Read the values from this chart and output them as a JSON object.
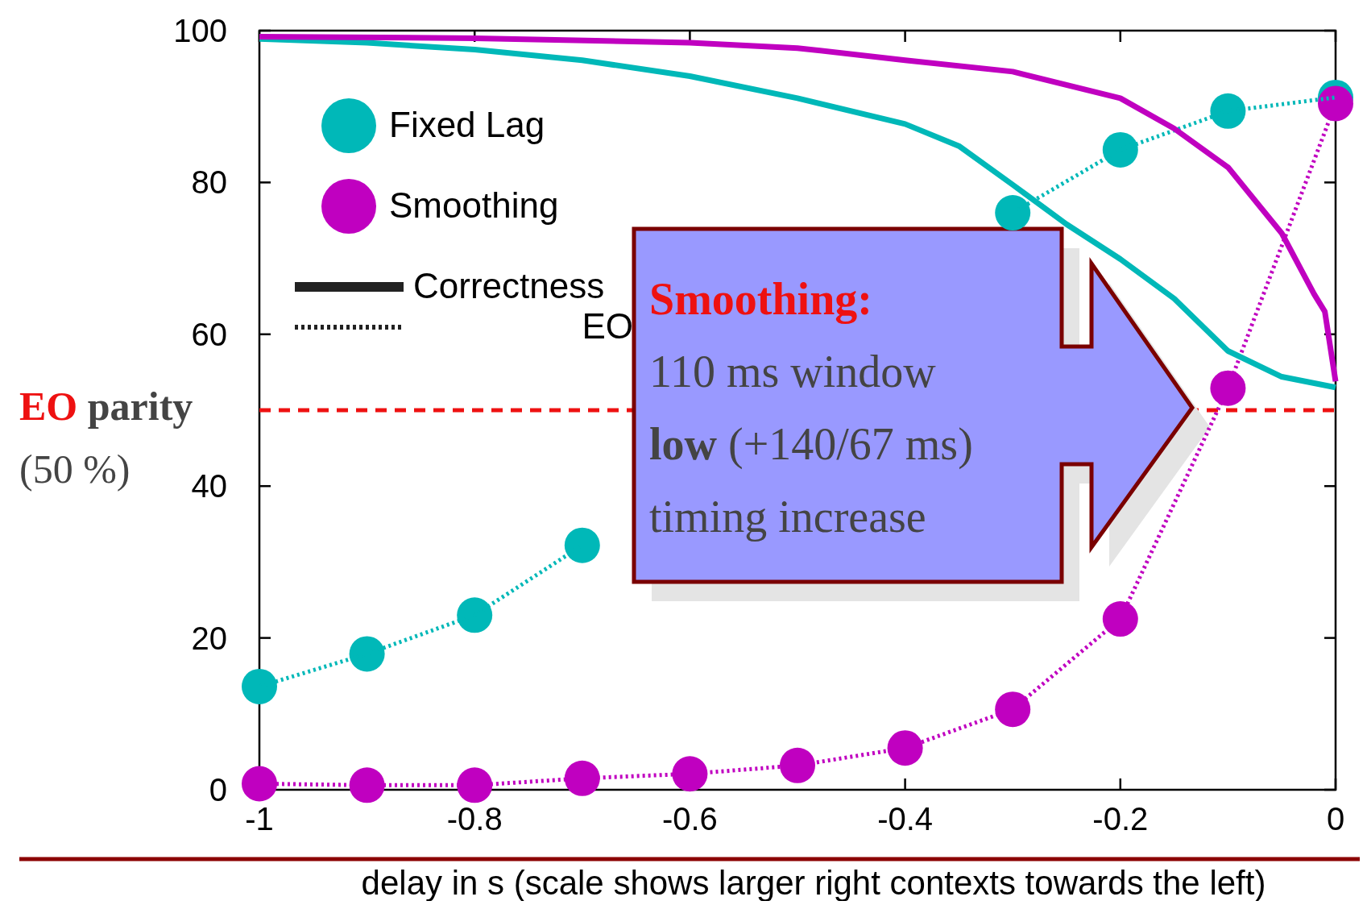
{
  "chart_data": {
    "type": "line",
    "xlabel": "delay in s (scale shows larger right contexts towards the left)",
    "xlim": [
      -1,
      0
    ],
    "xticks": [
      -1,
      -0.8,
      -0.6,
      -0.4,
      -0.2,
      0
    ],
    "ylim": [
      0,
      100
    ],
    "yticks": [
      0,
      20,
      40,
      60,
      80,
      100
    ],
    "grid": false,
    "legend": "top left",
    "series": [
      {
        "name": "Fixed Lag",
        "color": "#00b8b8",
        "marker": "circle",
        "line_style": "dotted",
        "x": [
          -1,
          -0.9,
          -0.8,
          -0.7,
          -0.6,
          -0.5,
          -0.4,
          -0.3,
          -0.2,
          -0.1,
          0
        ],
        "values": [
          13.6,
          17.9,
          23,
          32.2,
          null,
          null,
          null,
          76,
          84.3,
          89.4,
          91.2
        ]
      },
      {
        "name": "Smoothing",
        "color": "#c000c0",
        "marker": "circle",
        "line_style": "dotted",
        "x": [
          -1,
          -0.9,
          -0.8,
          -0.7,
          -0.6,
          -0.5,
          -0.4,
          -0.3,
          -0.2,
          -0.1,
          0
        ],
        "values": [
          0.8,
          0.6,
          0.6,
          1.5,
          2.1,
          3.2,
          5.5,
          10.6,
          22.5,
          52.9,
          90.4
        ]
      },
      {
        "color": "#00b8b8",
        "marker": "none",
        "line_style": "solid",
        "x": [
          -1,
          -0.9,
          -0.8,
          -0.7,
          -0.6,
          -0.5,
          -0.4,
          -0.35,
          -0.3,
          -0.25,
          -0.2,
          -0.15,
          -0.1,
          -0.05,
          0
        ],
        "values": [
          98.9,
          98.4,
          97.5,
          96.1,
          94,
          91.1,
          87.7,
          84.8,
          79.7,
          74.5,
          69.9,
          64.7,
          57.8,
          54.4,
          53
        ]
      },
      {
        "color": "#c000c0",
        "marker": "none",
        "line_style": "solid",
        "x": [
          -1,
          -0.8,
          -0.6,
          -0.5,
          -0.4,
          -0.3,
          -0.2,
          -0.15,
          -0.1,
          -0.05,
          -0.02,
          -0.01,
          0
        ],
        "values": [
          99.2,
          99,
          98.4,
          97.7,
          96.1,
          94.6,
          91.1,
          87.1,
          82,
          73.3,
          65.3,
          63,
          53.8
        ]
      }
    ],
    "ref_lines": [
      {
        "axis": "y",
        "value": 50,
        "label": "EO parity (50 %)",
        "color": "#ee1111",
        "line_style": "dashed"
      }
    ],
    "annotations": [
      "Correctness",
      "EO",
      "Smoothing:",
      "110 ms window",
      "low (+140/67 ms)",
      "timing increase"
    ]
  }
}
